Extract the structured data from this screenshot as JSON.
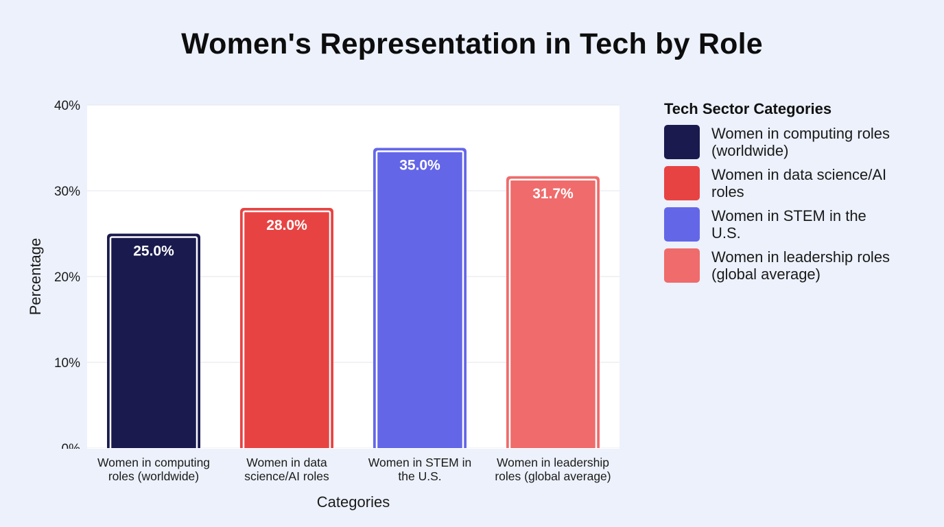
{
  "chart_data": {
    "type": "bar",
    "title": "Women's Representation in Tech by Role",
    "xlabel": "Categories",
    "ylabel": "Percentage",
    "ylim": [
      0,
      40
    ],
    "yticks": [
      "0%",
      "10%",
      "20%",
      "30%",
      "40%"
    ],
    "ytick_values": [
      0,
      10,
      20,
      30,
      40
    ],
    "grid": true,
    "legend_position": "right",
    "legend_title": "Tech Sector Categories",
    "categories": [
      "Women in computing roles (worldwide)",
      "Women in data science/AI roles",
      "Women in STEM in the U.S.",
      "Women in leadership roles (global average)"
    ],
    "category_tick_lines": [
      [
        "Women in computing",
        "roles (worldwide)"
      ],
      [
        "Women in data",
        "science/AI roles"
      ],
      [
        "Women in STEM in",
        "the U.S."
      ],
      [
        "Women in leadership",
        "roles (global average)"
      ]
    ],
    "legend_lines": [
      [
        "Women in computing roles",
        "(worldwide)"
      ],
      [
        "Women in data science/AI",
        "roles"
      ],
      [
        "Women in STEM in the",
        "U.S."
      ],
      [
        "Women in leadership roles",
        "(global average)"
      ]
    ],
    "values": [
      25.0,
      28.0,
      35.0,
      31.7
    ],
    "data_labels": [
      "25.0%",
      "28.0%",
      "35.0%",
      "31.7%"
    ],
    "colors": [
      "#1a1a4e",
      "#e84343",
      "#6466e8",
      "#f06b6b"
    ]
  }
}
